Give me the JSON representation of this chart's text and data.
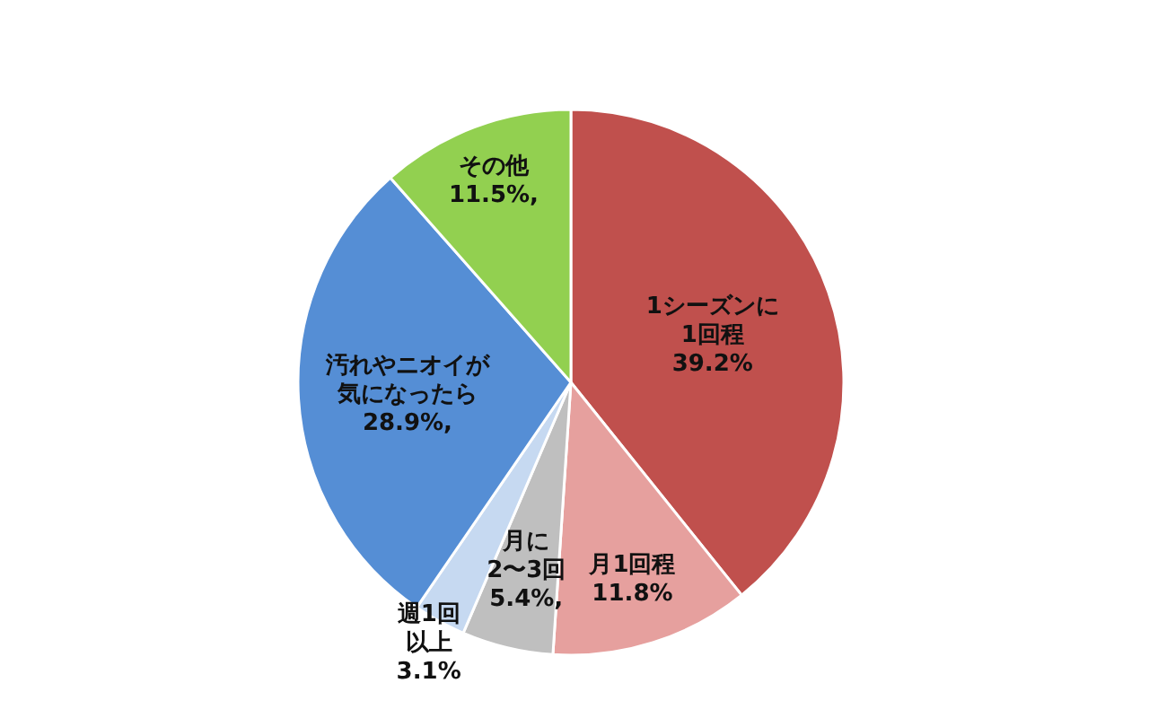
{
  "chart_data": {
    "type": "pie",
    "categories": [
      "1シーズンに1回程",
      "月1回程",
      "月に2〜3回",
      "週1回以上",
      "汚れやニオイが気になったら",
      "その他"
    ],
    "values": [
      39.2,
      11.8,
      5.4,
      3.1,
      28.9,
      11.5
    ],
    "value_labels": [
      "39.2%",
      "11.8%",
      "5.4%,",
      "3.1%",
      "28.9%,",
      "11.5%,"
    ],
    "colors": [
      "#c0504d",
      "#e6a09e",
      "#bfbfbf",
      "#c6d9f1",
      "#558ed5",
      "#92d050"
    ]
  }
}
